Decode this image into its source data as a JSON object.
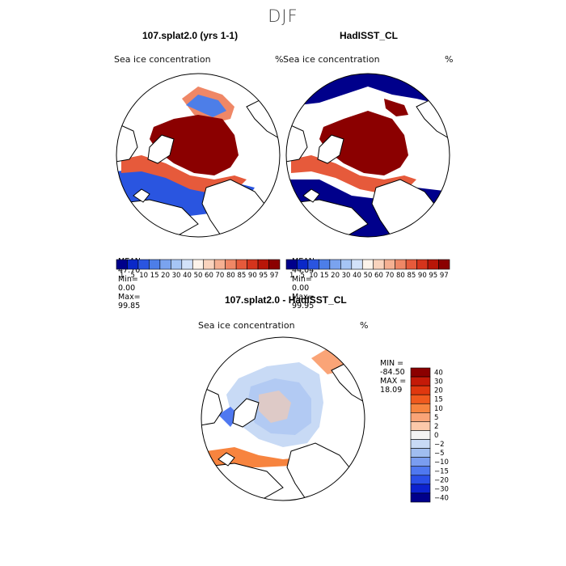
{
  "page_title": "DJF",
  "colors": {
    "ice_high": "#8b0000",
    "ocean_low": "#00008b",
    "land_fill": "#ffffff",
    "coast": "#000000"
  },
  "chart_data": [
    {
      "type": "heatmap",
      "projection": "north-polar-stereographic",
      "title": "107.splat2.0 (yrs 1-1)",
      "variable": "Sea ice concentration",
      "units": "%",
      "stats": {
        "mean_label": "MEAN=",
        "mean": "47.70",
        "min_label": "Min=",
        "min": "0.00",
        "max_label": "Max=",
        "max": "99.85"
      },
      "colorbar": {
        "orientation": "horizontal",
        "colors": [
          "#00008b",
          "#0a28c8",
          "#2a55e0",
          "#4d7ee8",
          "#7aa3ef",
          "#a6c5f5",
          "#d2e2fa",
          "#fdf3ea",
          "#f9d3bd",
          "#f5b092",
          "#ef8766",
          "#e65a3b",
          "#d5341c",
          "#b81608",
          "#8b0000"
        ],
        "tick_labels": [
          "1",
          "5",
          "10",
          "15",
          "20",
          "30",
          "40",
          "50",
          "60",
          "70",
          "80",
          "85",
          "90",
          "95",
          "97"
        ]
      }
    },
    {
      "type": "heatmap",
      "projection": "north-polar-stereographic",
      "title": "HadISST_CL",
      "variable": "Sea ice concentration",
      "units": "%",
      "stats": {
        "mean_label": "MEAN=",
        "mean": "44.04",
        "min_label": "Min=",
        "min": "0.00",
        "max_label": "Max=",
        "max": "99.95"
      },
      "colorbar": {
        "orientation": "horizontal",
        "colors": [
          "#00008b",
          "#0a28c8",
          "#2a55e0",
          "#4d7ee8",
          "#7aa3ef",
          "#a6c5f5",
          "#d2e2fa",
          "#fdf3ea",
          "#f9d3bd",
          "#f5b092",
          "#ef8766",
          "#e65a3b",
          "#d5341c",
          "#b81608",
          "#8b0000"
        ],
        "tick_labels": [
          "1",
          "5",
          "10",
          "15",
          "20",
          "30",
          "40",
          "50",
          "60",
          "70",
          "80",
          "85",
          "90",
          "95",
          "97"
        ]
      }
    },
    {
      "type": "heatmap",
      "projection": "north-polar-stereographic",
      "title": "107.splat2.0 - HadISST_CL",
      "variable": "Sea ice concentration",
      "units": "%",
      "stats": {
        "min_label": "MIN =",
        "min": "-84.50",
        "max_label": "MAX =",
        "max": "18.09"
      },
      "colorbar": {
        "orientation": "vertical",
        "colors_top_to_bottom": [
          "#8b0000",
          "#c41a08",
          "#e0380f",
          "#f05a1e",
          "#f7843f",
          "#faa477",
          "#fcc9aa",
          "#f3f3f3",
          "#c8daf5",
          "#a0bdf0",
          "#7a9df0",
          "#4f78f0",
          "#2a4fe8",
          "#0c22cf",
          "#00008b"
        ],
        "tick_labels_top_to_bottom": [
          "40",
          "30",
          "20",
          "15",
          "10",
          "5",
          "2",
          "0",
          "−2",
          "−5",
          "−10",
          "−15",
          "−20",
          "−30",
          "−40"
        ]
      }
    }
  ]
}
